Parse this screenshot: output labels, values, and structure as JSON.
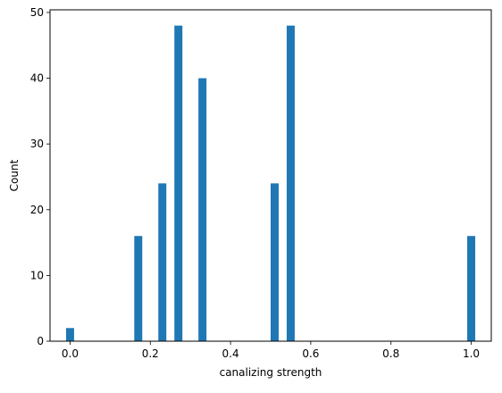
{
  "chart_data": {
    "type": "bar",
    "title": "",
    "xlabel": "canalizing strength",
    "ylabel": "Count",
    "xlim": [
      -0.05,
      1.05
    ],
    "ylim": [
      0,
      50.4
    ],
    "xticks": [
      "0.0",
      "0.2",
      "0.4",
      "0.6",
      "0.8",
      "1.0"
    ],
    "yticks": [
      "0",
      "10",
      "20",
      "30",
      "40",
      "50"
    ],
    "bin_width": 0.02,
    "grid": false,
    "bar_color": "#1f77b4",
    "bins": [
      {
        "x": 0.0,
        "count": 2
      },
      {
        "x": 0.17,
        "count": 16
      },
      {
        "x": 0.23,
        "count": 24
      },
      {
        "x": 0.27,
        "count": 48
      },
      {
        "x": 0.33,
        "count": 40
      },
      {
        "x": 0.51,
        "count": 24
      },
      {
        "x": 0.55,
        "count": 48
      },
      {
        "x": 1.0,
        "count": 16
      }
    ]
  }
}
